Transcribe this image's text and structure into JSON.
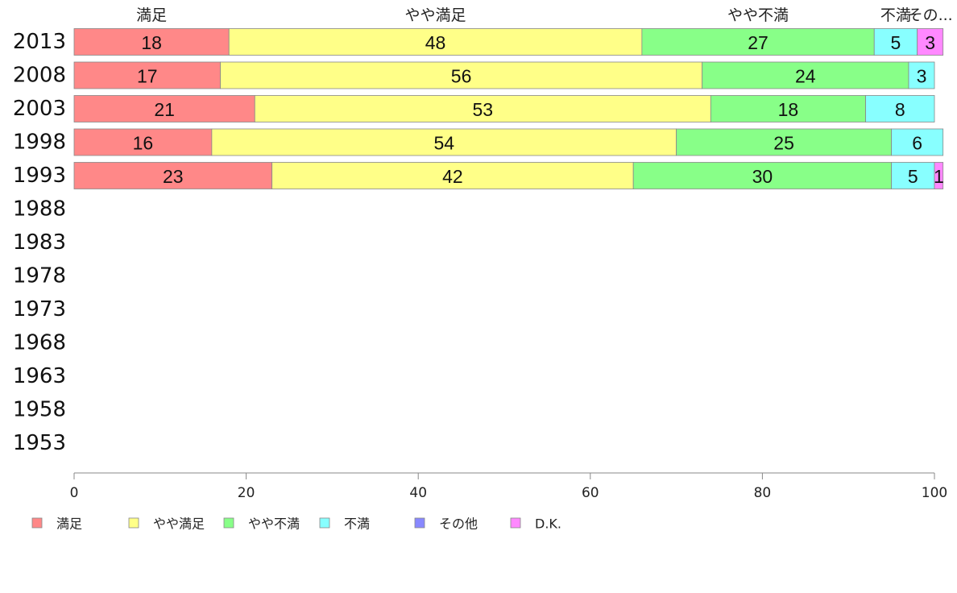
{
  "chart_data": {
    "type": "bar",
    "orientation": "horizontal",
    "stacked": true,
    "categories": [
      "2013",
      "2008",
      "2003",
      "1998",
      "1993",
      "1988",
      "1983",
      "1978",
      "1973",
      "1968",
      "1963",
      "1958",
      "1953"
    ],
    "series": [
      {
        "name": "満足",
        "color": "#ff8888",
        "values": [
          18,
          17,
          21,
          16,
          23,
          null,
          null,
          null,
          null,
          null,
          null,
          null,
          null
        ]
      },
      {
        "name": "やや満足",
        "color": "#ffff88",
        "values": [
          48,
          56,
          53,
          54,
          42,
          null,
          null,
          null,
          null,
          null,
          null,
          null,
          null
        ]
      },
      {
        "name": "やや不満",
        "color": "#88ff88",
        "values": [
          27,
          24,
          18,
          25,
          30,
          null,
          null,
          null,
          null,
          null,
          null,
          null,
          null
        ]
      },
      {
        "name": "不満",
        "color": "#88ffff",
        "values": [
          5,
          3,
          8,
          6,
          5,
          null,
          null,
          null,
          null,
          null,
          null,
          null,
          null
        ]
      },
      {
        "name": "その他",
        "color": "#8888ff",
        "values": [
          0,
          0,
          0,
          0,
          0,
          null,
          null,
          null,
          null,
          null,
          null,
          null,
          null
        ]
      },
      {
        "name": "D.K.",
        "color": "#ff88ff",
        "values": [
          3,
          0,
          0,
          0,
          1,
          null,
          null,
          null,
          null,
          null,
          null,
          null,
          null
        ]
      }
    ],
    "top_labels": [
      "満足",
      "やや満足",
      "やや不満",
      "不満",
      "その..."
    ],
    "xlim": [
      0,
      100
    ],
    "xticks": [
      0,
      20,
      40,
      60,
      80,
      100
    ],
    "legend_position": "bottom",
    "grid": false
  }
}
